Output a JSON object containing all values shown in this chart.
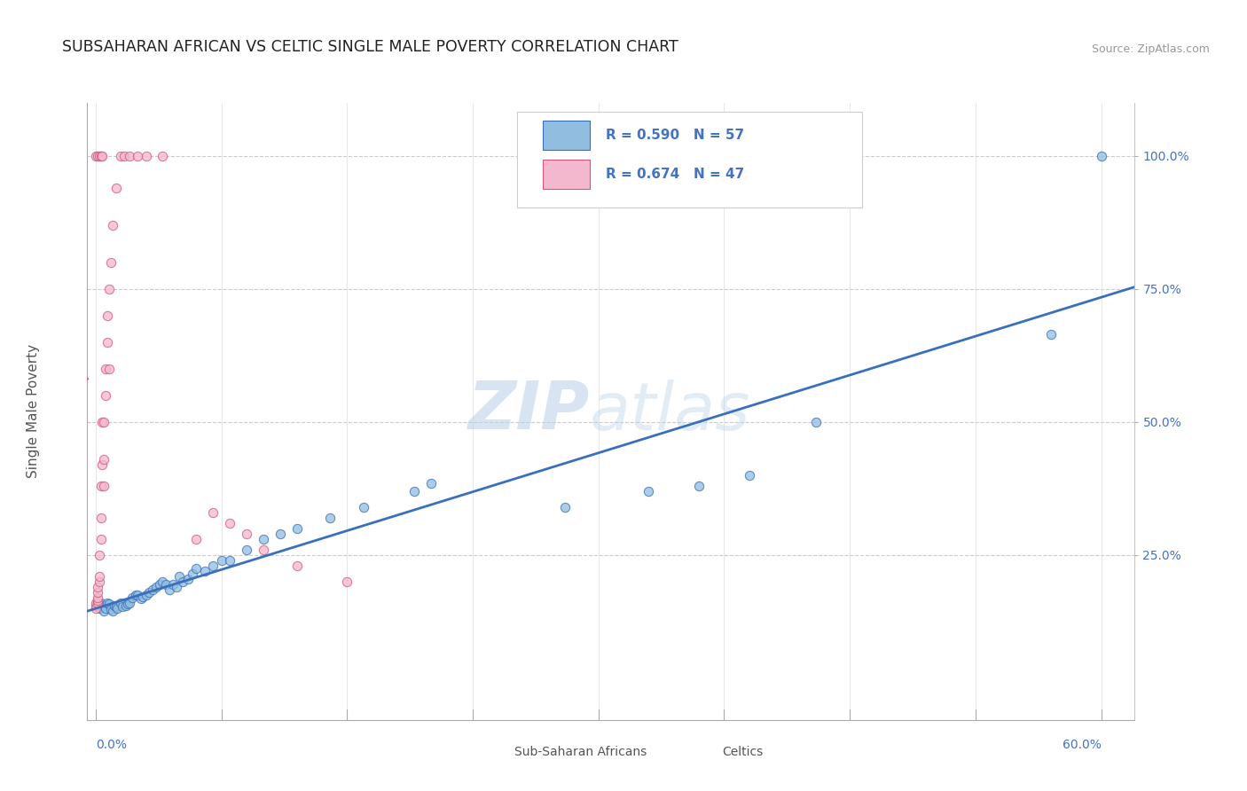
{
  "title": "SUBSAHARAN AFRICAN VS CELTIC SINGLE MALE POVERTY CORRELATION CHART",
  "source": "Source: ZipAtlas.com",
  "ylabel": "Single Male Poverty",
  "color_blue": "#90bde0",
  "color_pink": "#f4b8ce",
  "color_blue_line": "#3a6fbd",
  "color_pink_line": "#d9547a",
  "color_blue_text": "#4472c4",
  "watermark": "ZIPatlas",
  "blue_scatter_x": [
    0.001,
    0.002,
    0.003,
    0.004,
    0.005,
    0.006,
    0.007,
    0.008,
    0.009,
    0.01,
    0.011,
    0.012,
    0.013,
    0.015,
    0.016,
    0.018,
    0.019,
    0.02,
    0.022,
    0.024,
    0.025,
    0.027,
    0.028,
    0.03,
    0.032,
    0.034,
    0.036,
    0.038,
    0.04,
    0.042,
    0.044,
    0.046,
    0.048,
    0.05,
    0.052,
    0.055,
    0.058,
    0.06,
    0.065,
    0.07,
    0.075,
    0.08,
    0.09,
    0.1,
    0.11,
    0.12,
    0.14,
    0.16,
    0.19,
    0.2,
    0.28,
    0.33,
    0.36,
    0.39,
    0.43,
    0.57,
    0.6
  ],
  "blue_scatter_y": [
    0.155,
    0.15,
    0.16,
    0.155,
    0.145,
    0.15,
    0.16,
    0.158,
    0.148,
    0.145,
    0.155,
    0.153,
    0.15,
    0.16,
    0.153,
    0.155,
    0.158,
    0.16,
    0.17,
    0.175,
    0.175,
    0.168,
    0.172,
    0.175,
    0.18,
    0.185,
    0.19,
    0.195,
    0.2,
    0.195,
    0.185,
    0.195,
    0.19,
    0.21,
    0.2,
    0.205,
    0.215,
    0.225,
    0.22,
    0.23,
    0.24,
    0.24,
    0.26,
    0.28,
    0.29,
    0.3,
    0.32,
    0.34,
    0.37,
    0.385,
    0.34,
    0.37,
    0.38,
    0.4,
    0.5,
    0.665,
    1.0
  ],
  "pink_scatter_x": [
    0.0,
    0.0,
    0.0,
    0.001,
    0.001,
    0.001,
    0.001,
    0.001,
    0.002,
    0.002,
    0.002,
    0.003,
    0.003,
    0.003,
    0.004,
    0.004,
    0.005,
    0.005,
    0.005,
    0.006,
    0.006,
    0.007,
    0.007,
    0.008,
    0.008,
    0.009,
    0.01,
    0.012,
    0.015,
    0.017,
    0.02,
    0.025,
    0.03,
    0.04,
    0.06,
    0.07,
    0.08,
    0.09,
    0.1,
    0.12,
    0.15,
    0.0,
    0.001,
    0.002,
    0.003,
    0.004
  ],
  "pink_scatter_y": [
    0.155,
    0.16,
    0.15,
    0.16,
    0.165,
    0.17,
    0.18,
    0.19,
    0.2,
    0.21,
    0.25,
    0.28,
    0.32,
    0.38,
    0.42,
    0.5,
    0.38,
    0.43,
    0.5,
    0.55,
    0.6,
    0.65,
    0.7,
    0.75,
    0.6,
    0.8,
    0.87,
    0.94,
    1.0,
    1.0,
    1.0,
    1.0,
    1.0,
    1.0,
    0.28,
    0.33,
    0.31,
    0.29,
    0.26,
    0.23,
    0.2,
    1.0,
    1.0,
    1.0,
    1.0,
    1.0
  ]
}
